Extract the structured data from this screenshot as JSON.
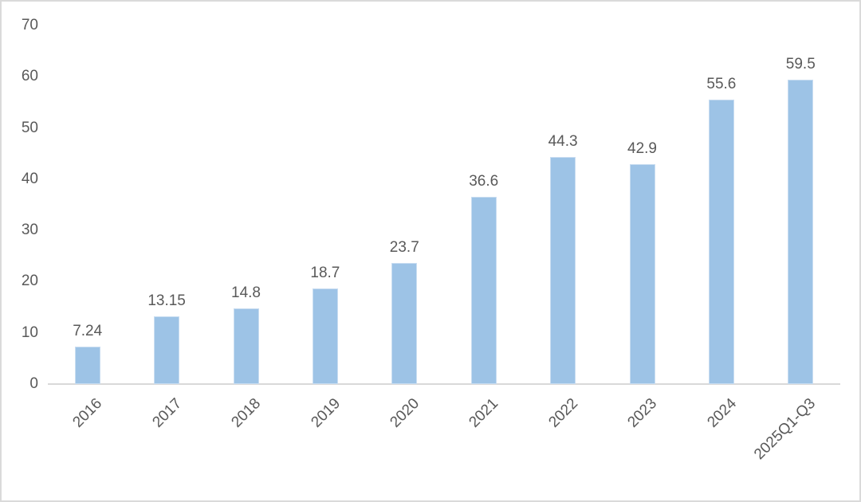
{
  "chart_data": {
    "type": "bar",
    "title": "",
    "xlabel": "",
    "ylabel": "",
    "categories": [
      "2016",
      "2017",
      "2018",
      "2019",
      "2020",
      "2021",
      "2022",
      "2023",
      "2024",
      "2025Q1-Q3"
    ],
    "values": [
      7.24,
      13.15,
      14.8,
      18.7,
      23.7,
      36.6,
      44.3,
      42.9,
      55.6,
      59.5
    ],
    "value_labels": [
      "7.24",
      "13.15",
      "14.8",
      "18.7",
      "23.7",
      "36.6",
      "44.3",
      "42.9",
      "55.6",
      "59.5"
    ],
    "ylim": [
      0,
      70
    ],
    "yticks": [
      0,
      10,
      20,
      30,
      40,
      50,
      60,
      70
    ],
    "grid": false,
    "legend": null,
    "colors": {
      "bar_fill": "#9DC3E6",
      "bar_edge": "#C9DDF1",
      "axis_line": "#D9D9D9",
      "label_text": "#595959",
      "frame": "#DADADA"
    }
  }
}
